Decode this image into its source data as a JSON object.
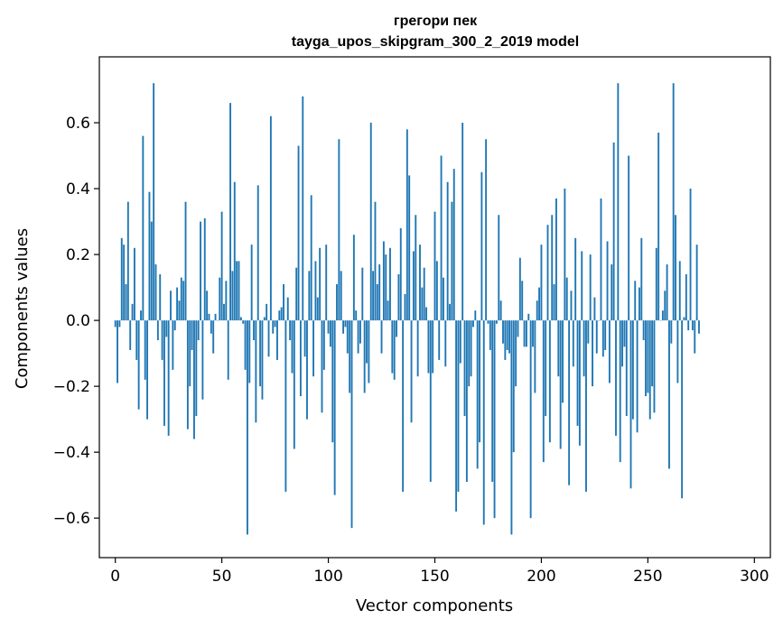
{
  "chart_data": {
    "type": "bar",
    "title": "грегори пек",
    "subtitle": "tayga_upos_skipgram_300_2_2019 model",
    "xlabel": "Vector components",
    "ylabel": "Components values",
    "xlim": [
      -7.5,
      307.5
    ],
    "ylim": [
      -0.72,
      0.8
    ],
    "xticks": [
      0,
      50,
      100,
      150,
      200,
      250,
      300
    ],
    "yticks": [
      -0.6,
      -0.4,
      -0.2,
      0.0,
      0.2,
      0.4,
      0.6
    ],
    "ytick_labels": [
      "−0.6",
      "−0.4",
      "−0.2",
      "0.0",
      "0.2",
      "0.4",
      "0.6"
    ],
    "bar_color": "#1f77b4",
    "values": [
      -0.02,
      -0.19,
      -0.02,
      0.25,
      0.23,
      0.11,
      0.36,
      -0.09,
      0.05,
      0.22,
      -0.12,
      -0.27,
      0.03,
      0.56,
      -0.18,
      -0.3,
      0.39,
      0.3,
      0.72,
      0.17,
      -0.06,
      0.14,
      -0.12,
      -0.32,
      -0.05,
      -0.35,
      0.09,
      -0.15,
      -0.03,
      0.1,
      0.06,
      0.13,
      0.12,
      0.36,
      -0.33,
      -0.2,
      -0.09,
      -0.36,
      -0.29,
      -0.06,
      0.3,
      -0.24,
      0.31,
      0.09,
      0.02,
      -0.04,
      -0.1,
      0.02,
      0.0,
      0.13,
      0.33,
      0.05,
      0.12,
      -0.18,
      0.66,
      0.15,
      0.42,
      0.18,
      0.18,
      0.01,
      -0.01,
      -0.15,
      -0.65,
      -0.19,
      0.23,
      -0.06,
      -0.31,
      0.41,
      -0.2,
      -0.24,
      0.01,
      0.05,
      -0.11,
      0.62,
      -0.04,
      -0.02,
      -0.12,
      0.03,
      0.04,
      0.11,
      -0.52,
      0.07,
      -0.06,
      -0.16,
      -0.39,
      0.16,
      0.53,
      -0.23,
      0.68,
      -0.11,
      -0.3,
      0.15,
      0.38,
      -0.17,
      0.18,
      0.07,
      0.22,
      -0.28,
      -0.15,
      0.23,
      -0.04,
      -0.08,
      -0.37,
      -0.53,
      0.11,
      0.55,
      0.15,
      -0.04,
      -0.02,
      -0.1,
      -0.22,
      -0.63,
      0.26,
      0.03,
      -0.1,
      -0.07,
      0.16,
      -0.22,
      -0.13,
      -0.19,
      0.6,
      0.15,
      0.36,
      0.11,
      0.17,
      -0.1,
      0.24,
      0.2,
      0.06,
      0.22,
      -0.16,
      -0.18,
      -0.05,
      0.14,
      0.28,
      -0.52,
      0.08,
      0.58,
      0.44,
      -0.31,
      0.21,
      0.32,
      -0.17,
      0.23,
      0.1,
      0.16,
      0.04,
      -0.16,
      -0.49,
      -0.16,
      0.33,
      0.18,
      -0.12,
      0.5,
      0.13,
      -0.14,
      0.42,
      0.05,
      0.36,
      0.46,
      -0.58,
      -0.52,
      -0.13,
      0.6,
      -0.29,
      -0.49,
      -0.2,
      -0.17,
      -0.02,
      0.03,
      -0.45,
      -0.37,
      0.45,
      -0.62,
      0.55,
      -0.01,
      -0.09,
      -0.49,
      -0.6,
      -0.01,
      0.32,
      0.06,
      -0.07,
      -0.12,
      -0.09,
      -0.1,
      -0.65,
      -0.4,
      -0.2,
      -0.05,
      0.19,
      0.12,
      -0.08,
      -0.08,
      0.02,
      -0.6,
      -0.08,
      -0.22,
      0.06,
      0.1,
      0.23,
      -0.43,
      -0.29,
      0.29,
      -0.37,
      0.32,
      0.11,
      0.37,
      -0.17,
      -0.39,
      -0.25,
      0.4,
      0.13,
      -0.5,
      0.09,
      -0.14,
      0.25,
      -0.32,
      -0.38,
      0.21,
      -0.17,
      -0.52,
      -0.07,
      0.2,
      -0.2,
      0.07,
      -0.1,
      0.0,
      0.37,
      -0.11,
      -0.09,
      0.24,
      -0.19,
      0.17,
      0.54,
      -0.35,
      0.72,
      -0.43,
      -0.14,
      -0.08,
      -0.29,
      0.5,
      -0.51,
      -0.3,
      0.12,
      -0.34,
      0.1,
      0.25,
      -0.06,
      -0.23,
      -0.22,
      -0.3,
      -0.2,
      -0.28,
      0.22,
      0.57,
      0.0,
      0.03,
      0.09,
      0.17,
      -0.45,
      -0.07,
      0.72,
      0.32,
      -0.19,
      0.18,
      -0.54,
      0.01,
      0.14,
      -0.03,
      0.4,
      -0.03,
      -0.1,
      0.23,
      -0.04
    ]
  }
}
